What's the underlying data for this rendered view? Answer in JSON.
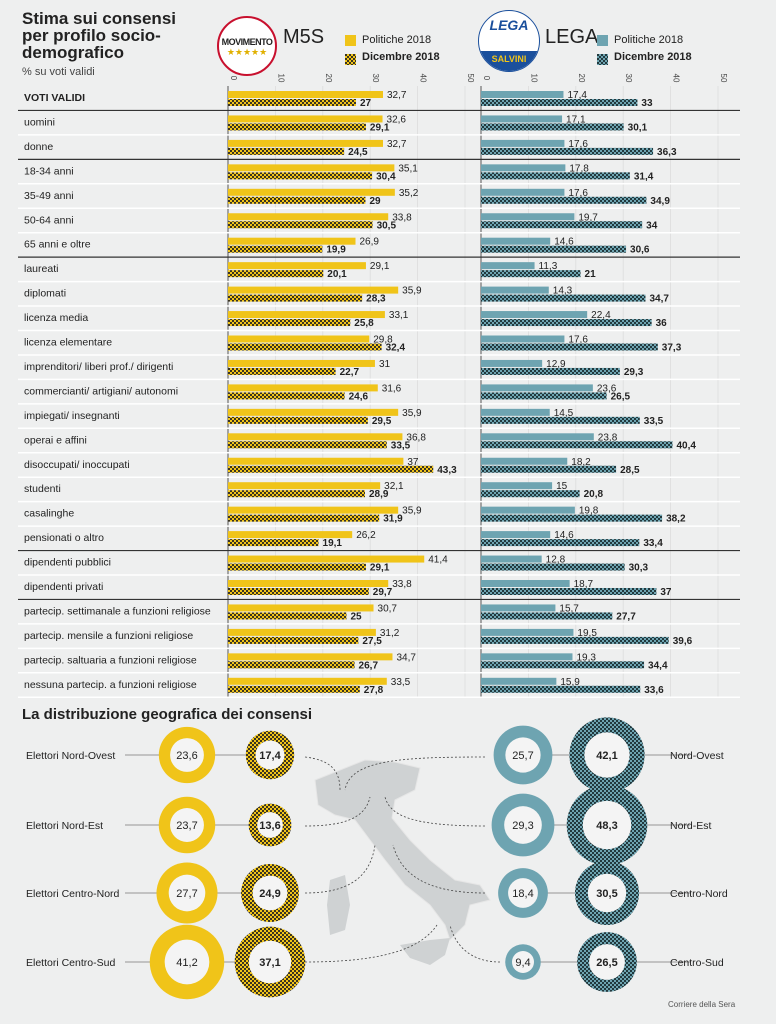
{
  "title": "Stima sui consensi per profilo socio-demografico",
  "subtitle": "% su voti validi",
  "colors": {
    "m5s": "#f0c419",
    "lega": "#6ea4b1",
    "dark": "#3a3a2a"
  },
  "parties": [
    {
      "name": "M5S",
      "logo_text": "MOVIMENTO",
      "legend": [
        "Politiche 2018",
        "Dicembre 2018"
      ]
    },
    {
      "name": "LEGA",
      "logo_text": "LEGA SALVINI PREMIER",
      "legend": [
        "Politiche 2018",
        "Dicembre 2018"
      ]
    }
  ],
  "chart_data": [
    {
      "type": "bar",
      "orientation": "horizontal",
      "xlim": [
        0,
        50
      ],
      "ticks": [
        "0",
        "10",
        "20",
        "30",
        "40",
        "50"
      ],
      "categories": [
        "VOTI VALIDI",
        "uomini",
        "donne",
        "18-34 anni",
        "35-49 anni",
        "50-64 anni",
        "65 anni e oltre",
        "laureati",
        "diplomati",
        "licenza media",
        "licenza elementare",
        "imprenditori/ liberi prof./ dirigenti",
        "commercianti/ artigiani/ autonomi",
        "impiegati/ insegnanti",
        "operai e affini",
        "disoccupati/ inoccupati",
        "studenti",
        "casalinghe",
        "pensionati o altro",
        "dipendenti pubblici",
        "dipendenti privati",
        "partecip. settimanale a funzioni religiose",
        "partecip. mensile a funzioni religiose",
        "partecip. saltuaria a funzioni religiose",
        "nessuna partecip. a funzioni religiose"
      ],
      "group_breaks_after": [
        "VOTI VALIDI",
        "donne",
        "65 anni e oltre",
        "pensionati o altro",
        "dipendenti privati"
      ],
      "series": [
        {
          "name": "M5S Politiche 2018",
          "values": [
            "32,7",
            "32,6",
            "32,7",
            "35,1",
            "35,2",
            "33,8",
            "26,9",
            "29,1",
            "35,9",
            "33,1",
            "29,8",
            "31",
            "31,6",
            "35,9",
            "36,8",
            "37",
            "32,1",
            "35,9",
            "26,2",
            "41,4",
            "33,8",
            "30,7",
            "31,2",
            "34,7",
            "33,5"
          ]
        },
        {
          "name": "M5S Dicembre 2018",
          "values": [
            "27",
            "29,1",
            "24,5",
            "30,4",
            "29",
            "30,5",
            "19,9",
            "20,1",
            "28,3",
            "25,8",
            "32,4",
            "22,7",
            "24,6",
            "29,5",
            "33,5",
            "43,3",
            "28,9",
            "31,9",
            "19,1",
            "29,1",
            "29,7",
            "25",
            "27,5",
            "26,7",
            "27,8"
          ]
        },
        {
          "name": "LEGA Politiche 2018",
          "values": [
            "17,4",
            "17,1",
            "17,6",
            "17,8",
            "17,6",
            "19,7",
            "14,6",
            "11,3",
            "14,3",
            "22,4",
            "17,6",
            "12,9",
            "23,6",
            "14,5",
            "23,8",
            "18,2",
            "15",
            "19,8",
            "14,6",
            "12,8",
            "18,7",
            "15,7",
            "19,5",
            "19,3",
            "15,9"
          ]
        },
        {
          "name": "LEGA Dicembre 2018",
          "values": [
            "33",
            "30,1",
            "36,3",
            "31,4",
            "34,9",
            "34",
            "30,6",
            "21",
            "34,7",
            "36",
            "37,3",
            "29,3",
            "26,5",
            "33,5",
            "40,4",
            "28,5",
            "20,8",
            "38,2",
            "33,4",
            "30,3",
            "37",
            "27,7",
            "39,6",
            "34,4",
            "33,6"
          ]
        }
      ]
    },
    {
      "type": "bubble",
      "title": "La distribuzione geografica dei consensi",
      "m5s_labels": [
        "Elettori Nord-Ovest",
        "Elettori Nord-Est",
        "Elettori Centro-Nord",
        "Elettori Centro-Sud"
      ],
      "lega_labels": [
        "Nord-Ovest",
        "Nord-Est",
        "Centro-Nord",
        "Centro-Sud"
      ],
      "series": [
        {
          "name": "M5S Politiche 2018",
          "values": [
            "23,6",
            "23,7",
            "27,7",
            "41,2"
          ]
        },
        {
          "name": "M5S Dicembre 2018",
          "values": [
            "17,4",
            "13,6",
            "24,9",
            "37,1"
          ]
        },
        {
          "name": "LEGA Politiche 2018",
          "values": [
            "25,7",
            "29,3",
            "18,4",
            "9,4"
          ]
        },
        {
          "name": "LEGA Dicembre 2018",
          "values": [
            "42,1",
            "48,3",
            "30,5",
            "26,5"
          ]
        }
      ]
    }
  ],
  "source": "Corriere della Sera"
}
